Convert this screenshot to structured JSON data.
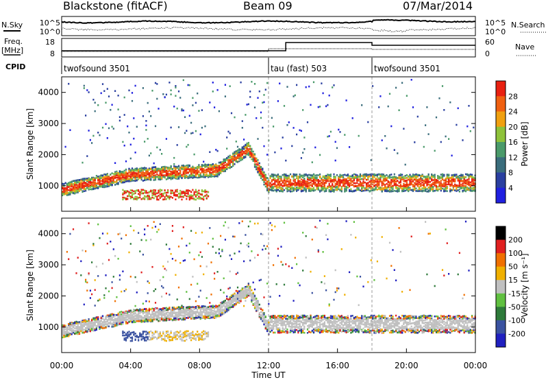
{
  "header": {
    "station": "Blackstone (fitACF)",
    "beam": "Beam 09",
    "date": "07/Mar/2014"
  },
  "side_labels": {
    "nsky": "N.Sky",
    "nsearch": "N.Search",
    "freq_line1": "Freq.",
    "freq_line2": "[MHz]",
    "nave": "Nave",
    "cpid": "CPID"
  },
  "noise_axis_labels": [
    "10^5",
    "10^0"
  ],
  "freq_axis_labels": [
    "18",
    "8"
  ],
  "nave_axis_labels": [
    "60",
    "0"
  ],
  "cpid_segments": [
    {
      "label": "twofsound 3501",
      "start_h": 0,
      "end_h": 12
    },
    {
      "label": "tau (fast) 503",
      "start_h": 12,
      "end_h": 18
    },
    {
      "label": "twofsound 3501",
      "start_h": 18,
      "end_h": 24
    }
  ],
  "colors": {
    "power_scale": [
      "#2020e0",
      "#2a3fa0",
      "#3a6d7c",
      "#4a9a6a",
      "#8ec23a",
      "#f0a010",
      "#f06010",
      "#e82010"
    ],
    "velocity_scale": [
      "#2020c0",
      "#3a52a0",
      "#2e7a3a",
      "#60c040",
      "#c0c0c0",
      "#f0b000",
      "#f07000",
      "#e02020"
    ]
  },
  "chart_data": [
    {
      "type": "heatmap",
      "name": "power-panel",
      "ylabel": "Slant Range [km]",
      "colorbar_label": "Power [dB]",
      "colorbar_ticks": [
        "28",
        "24",
        "20",
        "16",
        "12",
        "8",
        "4"
      ],
      "xlim_hours": [
        0,
        24
      ],
      "ylim_km": [
        180,
        4500
      ],
      "yticks": [
        "1000",
        "2000",
        "3000",
        "4000"
      ],
      "vlines_hours": [
        12,
        18
      ]
    },
    {
      "type": "heatmap",
      "name": "velocity-panel",
      "ylabel": "Slant Range [km]",
      "colorbar_label": "Velocity [m s⁻¹]",
      "colorbar_ticks": [
        "200",
        "100",
        "50",
        "15",
        "-15",
        "-50",
        "-100",
        "-200"
      ],
      "xlim_hours": [
        0,
        24
      ],
      "ylim_km": [
        180,
        4500
      ],
      "yticks": [
        "1000",
        "2000",
        "3000",
        "4000"
      ],
      "vlines_hours": [
        12,
        18
      ]
    }
  ],
  "x_axis": {
    "ticks": [
      "00:00",
      "04:00",
      "08:00",
      "12:00",
      "16:00",
      "20:00",
      "00:00"
    ],
    "label": "Time UT"
  }
}
